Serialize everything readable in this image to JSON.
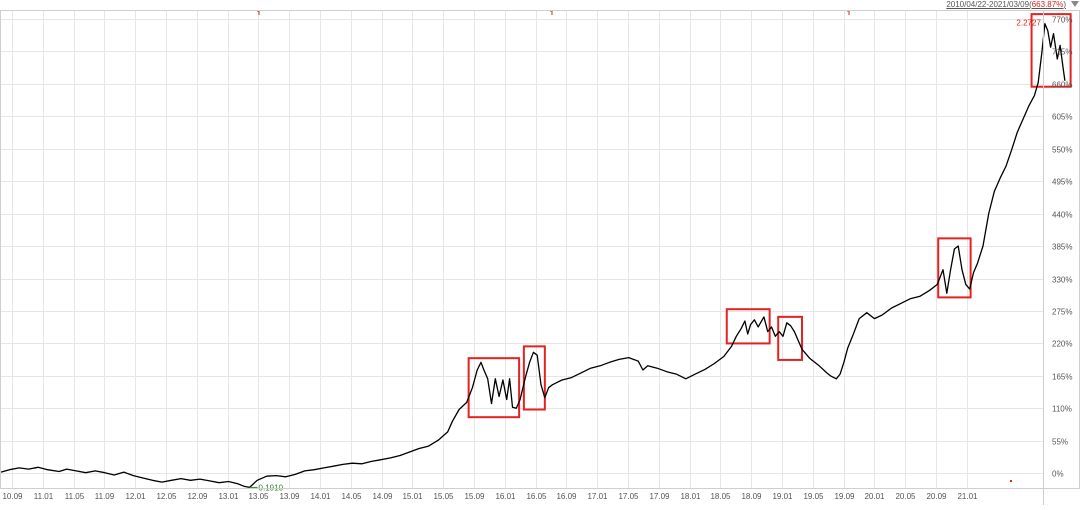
{
  "header": {
    "period_range": "2010/04/22-2021/03/09",
    "period_change_open": "(",
    "period_change": "663.87%",
    "period_change_close": ")"
  },
  "chart_data": {
    "type": "line",
    "x_tick_labels": [
      "10.09",
      "11.01",
      "11.05",
      "11.09",
      "12.01",
      "12.05",
      "12.09",
      "13.01",
      "13.05",
      "13.09",
      "14.01",
      "14.05",
      "14.09",
      "15.01",
      "15.05",
      "15.09",
      "16.01",
      "16.05",
      "16.09",
      "17.01",
      "17.05",
      "17.09",
      "18.01",
      "18.05",
      "18.09",
      "19.01",
      "19.05",
      "19.09",
      "20.01",
      "20.05",
      "20.09",
      "21.01"
    ],
    "y_tick_labels": [
      "0%",
      "55%",
      "110%",
      "165%",
      "220%",
      "275%",
      "330%",
      "385%",
      "440%",
      "495%",
      "550%",
      "605%",
      "660%",
      "715%",
      "770%"
    ],
    "y_ticks": [
      0,
      55,
      110,
      165,
      220,
      275,
      330,
      385,
      440,
      495,
      550,
      605,
      660,
      715,
      770
    ],
    "ylim": [
      -25,
      785
    ],
    "xlim": [
      2010.3,
      2021.25
    ],
    "grid": true,
    "series": [
      {
        "color": "#000000",
        "points": [
          [
            2010.31,
            2
          ],
          [
            2010.4,
            6
          ],
          [
            2010.5,
            9
          ],
          [
            2010.6,
            7
          ],
          [
            2010.7,
            10
          ],
          [
            2010.8,
            6
          ],
          [
            2010.92,
            3
          ],
          [
            2011.0,
            7
          ],
          [
            2011.1,
            4
          ],
          [
            2011.2,
            1
          ],
          [
            2011.3,
            4
          ],
          [
            2011.4,
            1
          ],
          [
            2011.5,
            -3
          ],
          [
            2011.6,
            2
          ],
          [
            2011.7,
            -4
          ],
          [
            2011.8,
            -8
          ],
          [
            2011.9,
            -12
          ],
          [
            2012.0,
            -15
          ],
          [
            2012.1,
            -12
          ],
          [
            2012.2,
            -9
          ],
          [
            2012.3,
            -12
          ],
          [
            2012.4,
            -10
          ],
          [
            2012.5,
            -13
          ],
          [
            2012.6,
            -16
          ],
          [
            2012.7,
            -14
          ],
          [
            2012.8,
            -18
          ],
          [
            2012.86,
            -22
          ],
          [
            2012.92,
            -24
          ],
          [
            2013.0,
            -12
          ],
          [
            2013.1,
            -5
          ],
          [
            2013.2,
            -4
          ],
          [
            2013.3,
            -6
          ],
          [
            2013.4,
            -2
          ],
          [
            2013.5,
            4
          ],
          [
            2013.6,
            6
          ],
          [
            2013.7,
            9
          ],
          [
            2013.8,
            12
          ],
          [
            2013.9,
            15
          ],
          [
            2014.0,
            17
          ],
          [
            2014.1,
            16
          ],
          [
            2014.2,
            20
          ],
          [
            2014.3,
            23
          ],
          [
            2014.4,
            26
          ],
          [
            2014.5,
            30
          ],
          [
            2014.6,
            36
          ],
          [
            2014.7,
            42
          ],
          [
            2014.8,
            46
          ],
          [
            2014.9,
            56
          ],
          [
            2015.0,
            70
          ],
          [
            2015.05,
            88
          ],
          [
            2015.12,
            108
          ],
          [
            2015.2,
            120
          ],
          [
            2015.26,
            145
          ],
          [
            2015.31,
            175
          ],
          [
            2015.35,
            188
          ],
          [
            2015.38,
            175
          ],
          [
            2015.42,
            160
          ],
          [
            2015.46,
            118
          ],
          [
            2015.5,
            160
          ],
          [
            2015.54,
            130
          ],
          [
            2015.58,
            158
          ],
          [
            2015.62,
            125
          ],
          [
            2015.65,
            160
          ],
          [
            2015.68,
            112
          ],
          [
            2015.72,
            110
          ],
          [
            2015.76,
            125
          ],
          [
            2015.82,
            165
          ],
          [
            2015.86,
            188
          ],
          [
            2015.9,
            205
          ],
          [
            2015.94,
            200
          ],
          [
            2015.98,
            150
          ],
          [
            2016.02,
            128
          ],
          [
            2016.06,
            145
          ],
          [
            2016.1,
            150
          ],
          [
            2016.2,
            158
          ],
          [
            2016.3,
            162
          ],
          [
            2016.4,
            170
          ],
          [
            2016.5,
            178
          ],
          [
            2016.6,
            182
          ],
          [
            2016.7,
            188
          ],
          [
            2016.8,
            193
          ],
          [
            2016.9,
            196
          ],
          [
            2017.0,
            190
          ],
          [
            2017.05,
            175
          ],
          [
            2017.1,
            182
          ],
          [
            2017.2,
            178
          ],
          [
            2017.3,
            172
          ],
          [
            2017.4,
            168
          ],
          [
            2017.5,
            160
          ],
          [
            2017.6,
            168
          ],
          [
            2017.7,
            176
          ],
          [
            2017.8,
            186
          ],
          [
            2017.9,
            198
          ],
          [
            2017.98,
            215
          ],
          [
            2018.03,
            232
          ],
          [
            2018.08,
            245
          ],
          [
            2018.12,
            258
          ],
          [
            2018.15,
            236
          ],
          [
            2018.18,
            252
          ],
          [
            2018.22,
            260
          ],
          [
            2018.26,
            248
          ],
          [
            2018.32,
            265
          ],
          [
            2018.36,
            240
          ],
          [
            2018.4,
            248
          ],
          [
            2018.44,
            232
          ],
          [
            2018.48,
            240
          ],
          [
            2018.52,
            232
          ],
          [
            2018.56,
            255
          ],
          [
            2018.6,
            250
          ],
          [
            2018.64,
            240
          ],
          [
            2018.68,
            225
          ],
          [
            2018.72,
            210
          ],
          [
            2018.8,
            195
          ],
          [
            2018.9,
            182
          ],
          [
            2018.98,
            170
          ],
          [
            2019.02,
            165
          ],
          [
            2019.08,
            160
          ],
          [
            2019.12,
            168
          ],
          [
            2019.16,
            188
          ],
          [
            2019.2,
            212
          ],
          [
            2019.25,
            232
          ],
          [
            2019.32,
            262
          ],
          [
            2019.4,
            272
          ],
          [
            2019.48,
            262
          ],
          [
            2019.56,
            268
          ],
          [
            2019.66,
            280
          ],
          [
            2019.76,
            288
          ],
          [
            2019.86,
            296
          ],
          [
            2019.96,
            300
          ],
          [
            2020.06,
            310
          ],
          [
            2020.14,
            320
          ],
          [
            2020.2,
            345
          ],
          [
            2020.24,
            305
          ],
          [
            2020.28,
            345
          ],
          [
            2020.32,
            380
          ],
          [
            2020.36,
            385
          ],
          [
            2020.4,
            345
          ],
          [
            2020.44,
            320
          ],
          [
            2020.48,
            312
          ],
          [
            2020.52,
            340
          ],
          [
            2020.56,
            355
          ],
          [
            2020.62,
            385
          ],
          [
            2020.68,
            440
          ],
          [
            2020.74,
            478
          ],
          [
            2020.8,
            500
          ],
          [
            2020.86,
            520
          ],
          [
            2020.92,
            548
          ],
          [
            2020.98,
            578
          ],
          [
            2021.04,
            600
          ],
          [
            2021.1,
            622
          ],
          [
            2021.16,
            640
          ],
          [
            2021.2,
            662
          ],
          [
            2021.24,
            715
          ],
          [
            2021.27,
            762
          ],
          [
            2021.3,
            750
          ],
          [
            2021.33,
            722
          ],
          [
            2021.36,
            745
          ],
          [
            2021.4,
            702
          ],
          [
            2021.43,
            725
          ],
          [
            2021.46,
            688
          ],
          [
            2021.48,
            665
          ]
        ]
      }
    ],
    "annotations": {
      "max_label": "2.2727",
      "min_label": "0.1910"
    },
    "highlight_boxes": [
      {
        "x": [
          2015.22,
          2015.75
        ],
        "y": [
          95,
          195
        ]
      },
      {
        "x": [
          2015.8,
          2016.02
        ],
        "y": [
          108,
          215
        ]
      },
      {
        "x": [
          2017.93,
          2018.38
        ],
        "y": [
          220,
          278
        ]
      },
      {
        "x": [
          2018.47,
          2018.72
        ],
        "y": [
          192,
          265
        ]
      },
      {
        "x": [
          2020.15,
          2020.49
        ],
        "y": [
          298,
          398
        ]
      },
      {
        "x": [
          2021.13,
          2021.54
        ],
        "y": [
          655,
          778
        ]
      }
    ],
    "colors": {
      "line": "#000000",
      "highlight": "#e52222",
      "grid": "#e6e6e6",
      "min_label": "#2a8a2a",
      "max_label": "#e52222",
      "tick_text": "#555555"
    }
  }
}
